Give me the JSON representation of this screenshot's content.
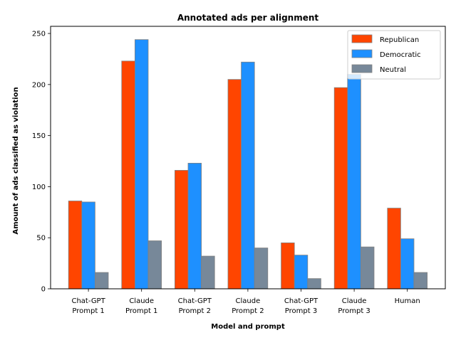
{
  "chart_data": {
    "type": "bar",
    "title": "Annotated ads per alignment",
    "xlabel": "Model and prompt",
    "ylabel": "Amount of ads classified as violation",
    "categories": [
      [
        "Chat-GPT",
        "Prompt 1"
      ],
      [
        "Claude",
        "Prompt 1"
      ],
      [
        "Chat-GPT",
        "Prompt 2"
      ],
      [
        "Claude",
        "Prompt 2"
      ],
      [
        "Chat-GPT",
        "Prompt 3"
      ],
      [
        "Claude",
        "Prompt 3"
      ],
      [
        "Human"
      ]
    ],
    "series": [
      {
        "name": "Republican",
        "color": "#ff4500",
        "values": [
          86,
          223,
          116,
          205,
          45,
          197,
          79
        ]
      },
      {
        "name": "Democratic",
        "color": "#1e90ff",
        "values": [
          85,
          244,
          123,
          222,
          33,
          210,
          49
        ]
      },
      {
        "name": "Neutral",
        "color": "#778899",
        "values": [
          16,
          47,
          32,
          40,
          10,
          41,
          16
        ]
      }
    ],
    "ylim": [
      0,
      257
    ],
    "yticks": [
      0,
      50,
      100,
      150,
      200,
      250
    ],
    "legend_position": "top-right",
    "grid": false
  }
}
